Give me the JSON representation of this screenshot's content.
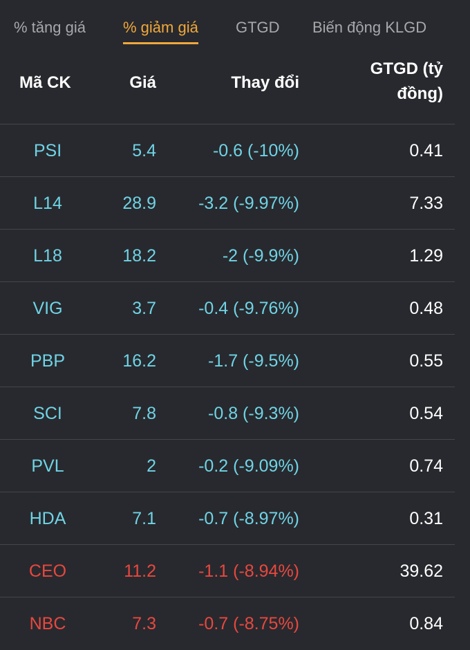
{
  "tabs": [
    {
      "label": "% tăng giá",
      "active": false
    },
    {
      "label": "% giảm giá",
      "active": true
    },
    {
      "label": "GTGD",
      "active": false
    },
    {
      "label": "Biến động KLGD",
      "active": false
    }
  ],
  "table": {
    "headers": {
      "code": "Mã CK",
      "price": "Giá",
      "change": "Thay đổi",
      "value_line1": "GTGD (tỷ",
      "value_line2": "đồng)"
    },
    "colors": {
      "down": "#6fd4e6",
      "floor": "#e8483f",
      "active_tab": "#f0a83a"
    },
    "rows": [
      {
        "code": "PSI",
        "price": "5.4",
        "change": "-0.6 (-10%)",
        "value": "0.41",
        "status": "down"
      },
      {
        "code": "L14",
        "price": "28.9",
        "change": "-3.2 (-9.97%)",
        "value": "7.33",
        "status": "down"
      },
      {
        "code": "L18",
        "price": "18.2",
        "change": "-2 (-9.9%)",
        "value": "1.29",
        "status": "down"
      },
      {
        "code": "VIG",
        "price": "3.7",
        "change": "-0.4 (-9.76%)",
        "value": "0.48",
        "status": "down"
      },
      {
        "code": "PBP",
        "price": "16.2",
        "change": "-1.7 (-9.5%)",
        "value": "0.55",
        "status": "down"
      },
      {
        "code": "SCI",
        "price": "7.8",
        "change": "-0.8 (-9.3%)",
        "value": "0.54",
        "status": "down"
      },
      {
        "code": "PVL",
        "price": "2",
        "change": "-0.2 (-9.09%)",
        "value": "0.74",
        "status": "down"
      },
      {
        "code": "HDA",
        "price": "7.1",
        "change": "-0.7 (-8.97%)",
        "value": "0.31",
        "status": "down"
      },
      {
        "code": "CEO",
        "price": "11.2",
        "change": "-1.1 (-8.94%)",
        "value": "39.62",
        "status": "floor"
      },
      {
        "code": "NBC",
        "price": "7.3",
        "change": "-0.7 (-8.75%)",
        "value": "0.84",
        "status": "floor"
      }
    ]
  }
}
